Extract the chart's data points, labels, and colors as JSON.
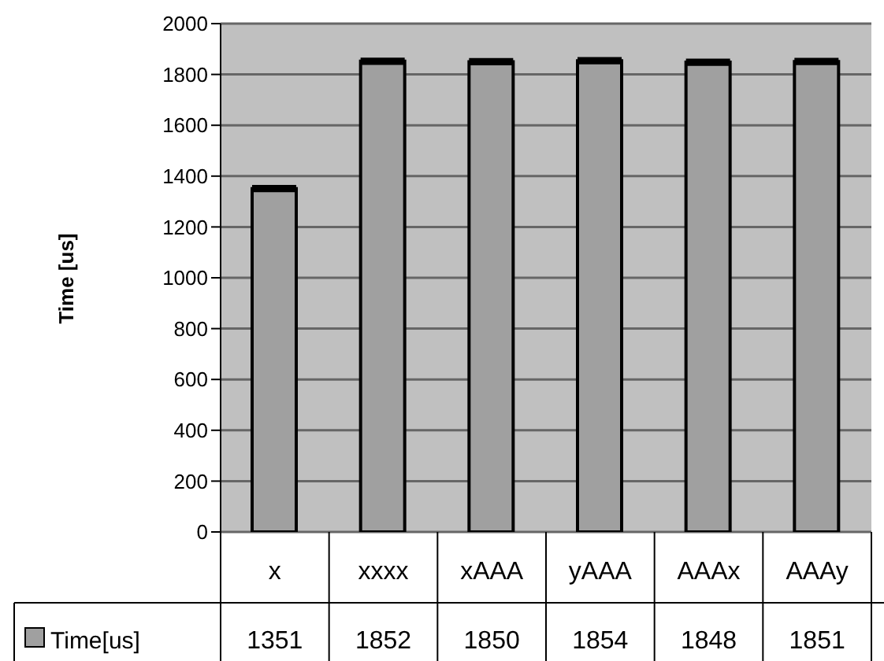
{
  "chart_data": {
    "type": "bar",
    "ylabel": "Time [us]",
    "categories": [
      "x",
      "xxxx",
      "xAAA",
      "yAAA",
      "AAAx",
      "AAAy"
    ],
    "series": [
      {
        "name": "Time[us]",
        "color": "#a0a0a0",
        "values": [
          1351,
          1852,
          1850,
          1854,
          1848,
          1851
        ],
        "errors": [
          8,
          8,
          8,
          8,
          8,
          8
        ]
      }
    ],
    "ylim": [
      0,
      2000
    ],
    "yticks": [
      0,
      200,
      400,
      600,
      800,
      1000,
      1200,
      1400,
      1600,
      1800,
      2000
    ],
    "grid": "y",
    "legend": "bottom",
    "data_labels": true
  }
}
